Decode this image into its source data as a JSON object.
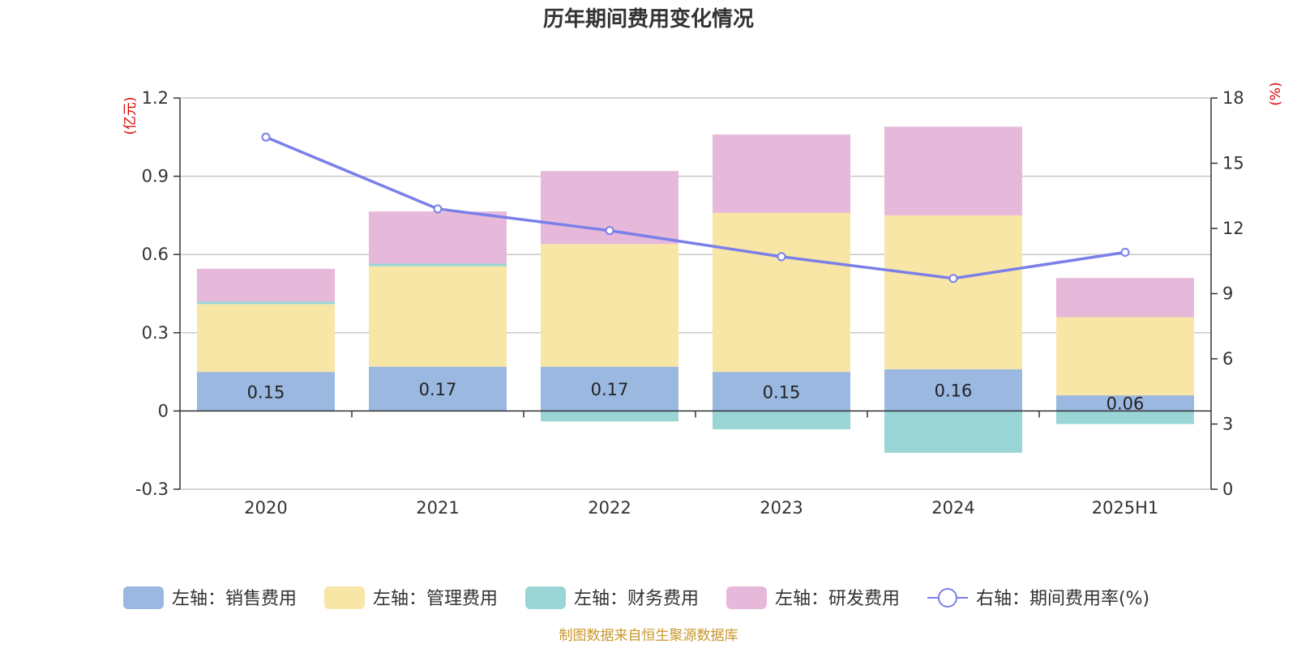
{
  "chart_data": {
    "type": "bar",
    "title": "历年期间费用变化情况",
    "categories": [
      "2020",
      "2021",
      "2022",
      "2023",
      "2024",
      "2025H1"
    ],
    "left_axis": {
      "unit": "(亿元)",
      "ylim": [
        -0.3,
        1.2
      ],
      "ticks": [
        "-0.3",
        "0",
        "0.3",
        "0.6",
        "0.9",
        "1.2"
      ]
    },
    "right_axis": {
      "unit": "(%)",
      "ylim": [
        0,
        18
      ],
      "ticks": [
        "0",
        "3",
        "6",
        "9",
        "12",
        "15",
        "18"
      ]
    },
    "series": [
      {
        "name": "左轴：销售费用",
        "type": "bar",
        "stack": true,
        "color": "#9bb8e0",
        "values": [
          0.15,
          0.17,
          0.17,
          0.15,
          0.16,
          0.06
        ],
        "labels": [
          "0.15",
          "0.17",
          "0.17",
          "0.15",
          "0.16",
          "0.06"
        ]
      },
      {
        "name": "左轴：管理费用",
        "type": "bar",
        "stack": true,
        "color": "#f7e6a6",
        "values": [
          0.26,
          0.385,
          0.47,
          0.61,
          0.59,
          0.3
        ]
      },
      {
        "name": "左轴：财务费用",
        "type": "bar",
        "stack": true,
        "color": "#99d5d5",
        "values": [
          0.01,
          0.01,
          -0.04,
          -0.07,
          -0.16,
          -0.05
        ]
      },
      {
        "name": "左轴：研发费用",
        "type": "bar",
        "stack": true,
        "color": "#e6b9da",
        "values": [
          0.125,
          0.2,
          0.28,
          0.3,
          0.34,
          0.15
        ]
      },
      {
        "name": "右轴：期间费用率(%)",
        "type": "line",
        "axis": "right",
        "color": "#7b7fe8",
        "values": [
          16.2,
          12.9,
          11.9,
          10.7,
          9.7,
          10.9
        ]
      }
    ],
    "grid": true,
    "legend_position": "bottom"
  },
  "source": "制图数据来自恒生聚源数据库"
}
